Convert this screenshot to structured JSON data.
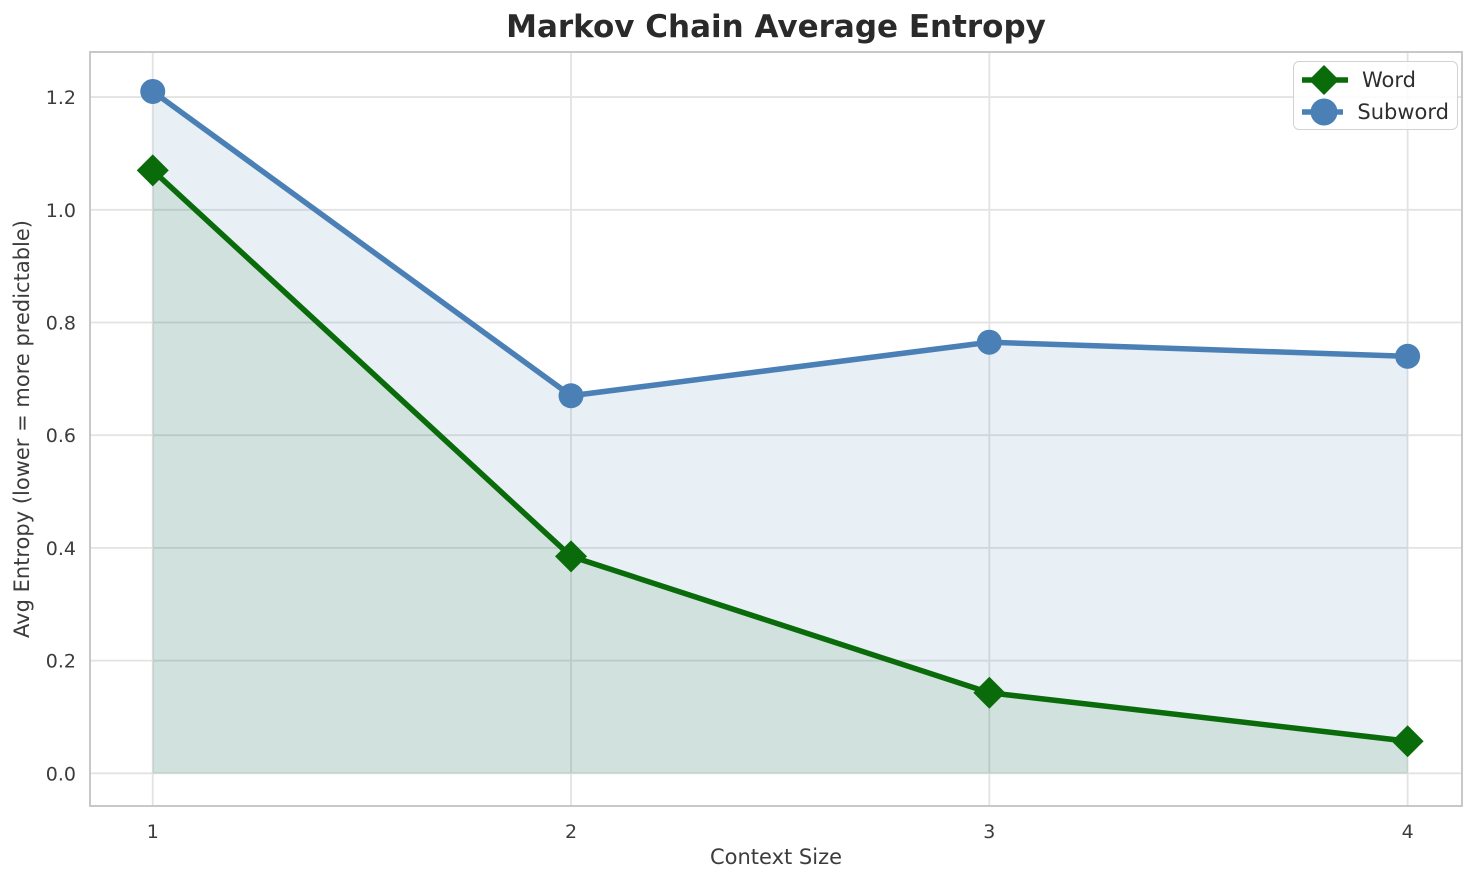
{
  "chart_data": {
    "type": "line",
    "title": "Markov Chain Average Entropy",
    "xlabel": "Context Size",
    "ylabel": "Avg Entropy (lower = more predictable)",
    "x": [
      1,
      2,
      3,
      4
    ],
    "series": [
      {
        "name": "Word",
        "marker": "diamond",
        "color": "#0a6b0a",
        "fill_alpha": 0.1,
        "values": [
          1.07,
          0.385,
          0.143,
          0.057
        ]
      },
      {
        "name": "Subword",
        "marker": "circle",
        "color": "#4a80b5",
        "fill_alpha": 0.13,
        "values": [
          1.21,
          0.67,
          0.765,
          0.74
        ]
      }
    ],
    "fill_baseline": 0,
    "xticks": {
      "values": [
        1,
        2,
        3,
        4
      ],
      "labels": [
        "1",
        "2",
        "3",
        "4"
      ]
    },
    "yticks": {
      "values": [
        0.0,
        0.2,
        0.4,
        0.6,
        0.8,
        1.0,
        1.2
      ],
      "labels": [
        "0.0",
        "0.2",
        "0.4",
        "0.6",
        "0.8",
        "1.0",
        "1.2"
      ]
    },
    "xlim": [
      0.85,
      4.13
    ],
    "ylim": [
      -0.058,
      1.28
    ],
    "grid": true,
    "legend": {
      "position": "top-right",
      "items": [
        "Word",
        "Subword"
      ]
    },
    "colors": {
      "grid": "#e3e3e3",
      "spine": "#c8c8c8",
      "tick_text": "#3c3c3c",
      "title_text": "#2a2a2a",
      "background": "#ffffff"
    }
  }
}
